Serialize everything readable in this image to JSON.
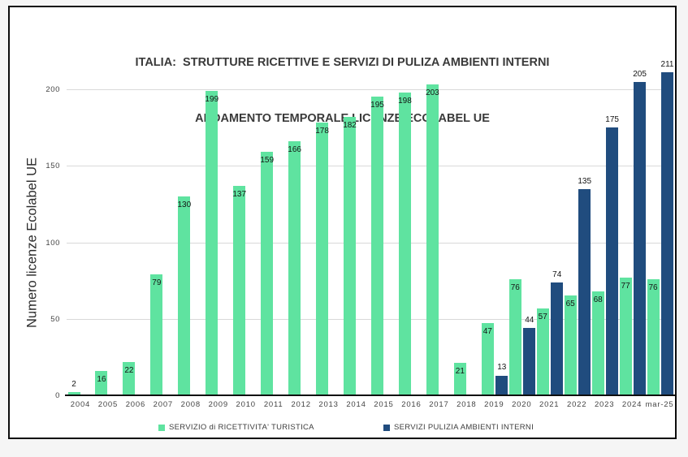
{
  "title": {
    "line1": "ITALIA:  STRUTTURE RICETTIVE E SERVIZI DI PULIZA AMBIENTI INTERNI",
    "line2": "ANDAMENTO TEMPORALE LICENZE ECOLABEL UE"
  },
  "chart_data": {
    "type": "bar",
    "title": "ITALIA: STRUTTURE RICETTIVE E SERVIZI DI PULIZA AMBIENTI INTERNI - ANDAMENTO TEMPORALE LICENZE ECOLABEL UE",
    "categories": [
      "2004",
      "2005",
      "2006",
      "2007",
      "2008",
      "2009",
      "2010",
      "2011",
      "2012",
      "2013",
      "2014",
      "2015",
      "2016",
      "2017",
      "2018",
      "2019",
      "2020",
      "2021",
      "2022",
      "2023",
      "2024",
      "mar-25"
    ],
    "series": [
      {
        "name": "SERVIZIO di RICETTIVITA' TURISTICA",
        "color": "#5FE3A0",
        "values": [
          2,
          16,
          22,
          79,
          130,
          199,
          137,
          159,
          166,
          178,
          182,
          195,
          198,
          203,
          21,
          47,
          76,
          57,
          65,
          68,
          77,
          76
        ]
      },
      {
        "name": "SERVIZI PULIZIA AMBIENTI INTERNI",
        "color": "#204C7E",
        "values": [
          null,
          null,
          null,
          null,
          null,
          null,
          null,
          null,
          null,
          null,
          null,
          null,
          null,
          null,
          null,
          13,
          44,
          74,
          135,
          175,
          205,
          211
        ]
      }
    ],
    "xlabel": "",
    "ylabel": "Numero licenze Ecolabel UE",
    "ylim": [
      0,
      220
    ],
    "y_ticks": [
      0,
      50,
      100,
      150,
      200
    ],
    "grid": "horizontal",
    "legend_position": "bottom",
    "data_labels": true
  },
  "y_axis": {
    "title": "Numero licenze Ecolabel UE"
  },
  "legend": {
    "items": [
      {
        "label": "SERVIZIO di RICETTIVITA' TURISTICA",
        "color": "#5FE3A0"
      },
      {
        "label": "SERVIZI PULIZIA AMBIENTI INTERNI",
        "color": "#204C7E"
      }
    ]
  }
}
